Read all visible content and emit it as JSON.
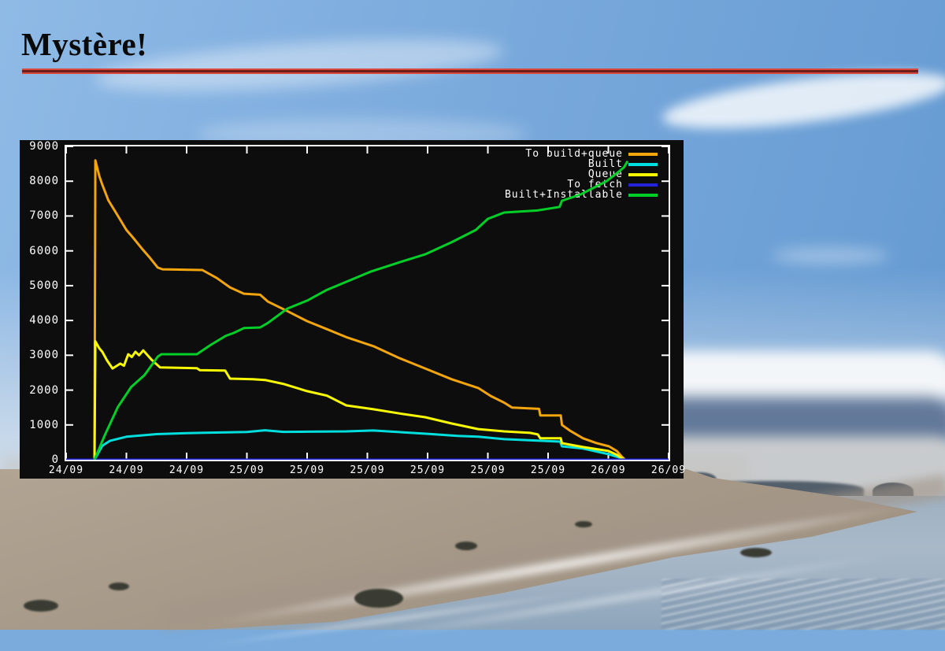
{
  "slide": {
    "title": "Mystère!"
  },
  "divider": {
    "bright_color": "#d94a3c",
    "dark_color": "#6e1e1a"
  },
  "chart": {
    "background_color": "#0d0d0d",
    "border_color": "#ffffff",
    "text_color": "#ffffff"
  },
  "chart_data": {
    "type": "line",
    "title": "",
    "xlabel": "",
    "ylabel": "",
    "grid": false,
    "legend_position": "inside top-right",
    "x_axis": {
      "note": "time axis, ticks evenly spaced; series x values are fractions 0-1 across the plot width",
      "tick_labels": [
        "24/09",
        "24/09",
        "24/09",
        "25/09",
        "25/09",
        "25/09",
        "25/09",
        "25/09",
        "25/09",
        "26/09",
        "26/09"
      ]
    },
    "y_axis": {
      "min": 0,
      "max": 9000,
      "step": 1000,
      "tick_labels": [
        "0",
        "1000",
        "2000",
        "3000",
        "4000",
        "5000",
        "6000",
        "7000",
        "8000",
        "9000"
      ]
    },
    "series": [
      {
        "name": "To build+queue",
        "color": "#f2a50c",
        "points": [
          [
            0.047,
            60
          ],
          [
            0.0485,
            8600
          ],
          [
            0.055,
            8150
          ],
          [
            0.06,
            7900
          ],
          [
            0.07,
            7450
          ],
          [
            0.086,
            7000
          ],
          [
            0.1,
            6600
          ],
          [
            0.11,
            6400
          ],
          [
            0.125,
            6080
          ],
          [
            0.14,
            5780
          ],
          [
            0.152,
            5520
          ],
          [
            0.16,
            5470
          ],
          [
            0.226,
            5450
          ],
          [
            0.25,
            5220
          ],
          [
            0.272,
            4950
          ],
          [
            0.295,
            4770
          ],
          [
            0.322,
            4740
          ],
          [
            0.335,
            4540
          ],
          [
            0.367,
            4270
          ],
          [
            0.4,
            3980
          ],
          [
            0.433,
            3750
          ],
          [
            0.465,
            3520
          ],
          [
            0.51,
            3260
          ],
          [
            0.553,
            2920
          ],
          [
            0.596,
            2620
          ],
          [
            0.64,
            2310
          ],
          [
            0.684,
            2060
          ],
          [
            0.705,
            1830
          ],
          [
            0.727,
            1640
          ],
          [
            0.74,
            1500
          ],
          [
            0.785,
            1460
          ],
          [
            0.787,
            1270
          ],
          [
            0.821,
            1270
          ],
          [
            0.823,
            1000
          ],
          [
            0.836,
            840
          ],
          [
            0.858,
            615
          ],
          [
            0.88,
            480
          ],
          [
            0.901,
            385
          ],
          [
            0.914,
            250
          ],
          [
            0.922,
            95
          ],
          [
            0.928,
            0
          ]
        ]
      },
      {
        "name": "Built",
        "color": "#00dede",
        "points": [
          [
            0.047,
            0
          ],
          [
            0.06,
            400
          ],
          [
            0.073,
            545
          ],
          [
            0.1,
            660
          ],
          [
            0.15,
            735
          ],
          [
            0.2,
            765
          ],
          [
            0.3,
            795
          ],
          [
            0.33,
            845
          ],
          [
            0.36,
            800
          ],
          [
            0.4,
            805
          ],
          [
            0.465,
            815
          ],
          [
            0.51,
            840
          ],
          [
            0.55,
            795
          ],
          [
            0.6,
            745
          ],
          [
            0.65,
            685
          ],
          [
            0.684,
            660
          ],
          [
            0.727,
            590
          ],
          [
            0.786,
            545
          ],
          [
            0.82,
            520
          ],
          [
            0.823,
            385
          ],
          [
            0.858,
            320
          ],
          [
            0.9,
            160
          ],
          [
            0.921,
            50
          ],
          [
            0.927,
            0
          ]
        ]
      },
      {
        "name": "Queue",
        "color": "#f8f800",
        "points": [
          [
            0.047,
            0
          ],
          [
            0.0485,
            3400
          ],
          [
            0.055,
            3200
          ],
          [
            0.06,
            3100
          ],
          [
            0.068,
            2850
          ],
          [
            0.077,
            2620
          ],
          [
            0.09,
            2760
          ],
          [
            0.096,
            2700
          ],
          [
            0.103,
            3030
          ],
          [
            0.109,
            2950
          ],
          [
            0.115,
            3100
          ],
          [
            0.121,
            3000
          ],
          [
            0.128,
            3140
          ],
          [
            0.142,
            2870
          ],
          [
            0.156,
            2650
          ],
          [
            0.217,
            2630
          ],
          [
            0.222,
            2570
          ],
          [
            0.264,
            2560
          ],
          [
            0.272,
            2330
          ],
          [
            0.31,
            2310
          ],
          [
            0.33,
            2290
          ],
          [
            0.36,
            2180
          ],
          [
            0.4,
            1970
          ],
          [
            0.433,
            1840
          ],
          [
            0.465,
            1560
          ],
          [
            0.51,
            1450
          ],
          [
            0.553,
            1330
          ],
          [
            0.596,
            1220
          ],
          [
            0.64,
            1040
          ],
          [
            0.684,
            880
          ],
          [
            0.727,
            815
          ],
          [
            0.77,
            770
          ],
          [
            0.783,
            725
          ],
          [
            0.787,
            615
          ],
          [
            0.821,
            615
          ],
          [
            0.823,
            475
          ],
          [
            0.858,
            365
          ],
          [
            0.9,
            250
          ],
          [
            0.914,
            140
          ],
          [
            0.926,
            0
          ]
        ]
      },
      {
        "name": "To fetch",
        "color": "#2222d8",
        "points": [
          [
            0.0,
            0
          ],
          [
            1.0,
            0
          ]
        ]
      },
      {
        "name": "Built+Installable",
        "color": "#00cf28",
        "points": [
          [
            0.047,
            0
          ],
          [
            0.064,
            700
          ],
          [
            0.086,
            1520
          ],
          [
            0.108,
            2090
          ],
          [
            0.13,
            2430
          ],
          [
            0.152,
            2960
          ],
          [
            0.158,
            3030
          ],
          [
            0.217,
            3030
          ],
          [
            0.24,
            3300
          ],
          [
            0.265,
            3560
          ],
          [
            0.278,
            3640
          ],
          [
            0.295,
            3780
          ],
          [
            0.322,
            3800
          ],
          [
            0.335,
            3930
          ],
          [
            0.367,
            4340
          ],
          [
            0.4,
            4570
          ],
          [
            0.433,
            4880
          ],
          [
            0.465,
            5110
          ],
          [
            0.505,
            5400
          ],
          [
            0.553,
            5670
          ],
          [
            0.596,
            5900
          ],
          [
            0.64,
            6250
          ],
          [
            0.68,
            6600
          ],
          [
            0.7,
            6920
          ],
          [
            0.727,
            7100
          ],
          [
            0.782,
            7160
          ],
          [
            0.8,
            7210
          ],
          [
            0.819,
            7260
          ],
          [
            0.823,
            7440
          ],
          [
            0.854,
            7620
          ],
          [
            0.897,
            8000
          ],
          [
            0.919,
            8300
          ],
          [
            0.926,
            8400
          ],
          [
            0.932,
            8580
          ]
        ]
      }
    ]
  }
}
